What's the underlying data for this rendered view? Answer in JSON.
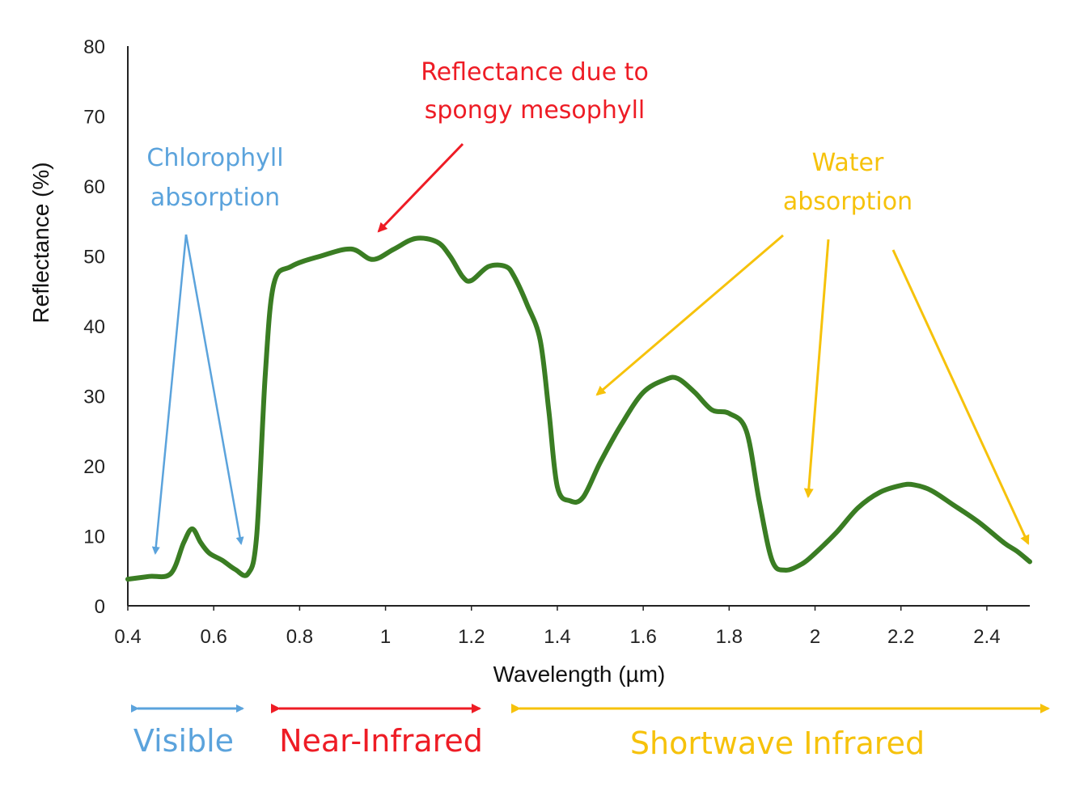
{
  "chart_data": {
    "type": "line",
    "xlabel": "Wavelength (µm)",
    "ylabel": "Reflectance (%)",
    "xlim": [
      0.4,
      2.5
    ],
    "ylim": [
      0,
      80
    ],
    "x_ticks": [
      "0.4",
      "0.6",
      "0.8",
      "1",
      "1.2",
      "1.4",
      "1.6",
      "1.8",
      "2",
      "2.2",
      "2.4"
    ],
    "y_ticks": [
      "0",
      "10",
      "20",
      "30",
      "40",
      "50",
      "60",
      "70",
      "80"
    ],
    "grid": false,
    "series": [
      {
        "color": "#3a7d23",
        "x": [
          0.4,
          0.45,
          0.5,
          0.53,
          0.55,
          0.57,
          0.59,
          0.62,
          0.65,
          0.68,
          0.7,
          0.72,
          0.74,
          0.78,
          0.85,
          0.92,
          0.97,
          1.02,
          1.07,
          1.12,
          1.15,
          1.18,
          1.2,
          1.24,
          1.28,
          1.3,
          1.33,
          1.36,
          1.38,
          1.4,
          1.43,
          1.46,
          1.5,
          1.55,
          1.6,
          1.65,
          1.68,
          1.72,
          1.76,
          1.8,
          1.84,
          1.87,
          1.9,
          1.93,
          1.97,
          2.0,
          2.05,
          2.1,
          2.15,
          2.2,
          2.23,
          2.27,
          2.32,
          2.38,
          2.44,
          2.47,
          2.5
        ],
        "y": [
          3.8,
          4.2,
          4.6,
          9.0,
          11.0,
          9.0,
          7.5,
          6.5,
          5.2,
          4.6,
          10,
          33,
          46,
          48.5,
          50,
          51,
          49.5,
          51,
          52.5,
          52,
          50,
          47,
          46.5,
          48.5,
          48.5,
          47,
          43,
          38,
          28,
          17,
          15,
          15.5,
          20.5,
          26,
          30.5,
          32.3,
          32.5,
          30.5,
          28,
          27.5,
          25,
          15,
          6.5,
          5.1,
          6.0,
          7.5,
          10.5,
          14,
          16.2,
          17.2,
          17.3,
          16.5,
          14.5,
          12,
          9,
          7.8,
          6.3
        ]
      }
    ],
    "annotations": [
      {
        "lines": [
          "Chlorophyll",
          "absorption"
        ],
        "color": "#5ba3dc"
      },
      {
        "lines": [
          "Reflectance due to",
          "spongy mesophyll"
        ],
        "color": "#ee1c25"
      },
      {
        "lines": [
          "Water",
          "absorption"
        ],
        "color": "#f6c20b"
      }
    ],
    "bands": [
      {
        "label": "Visible",
        "color": "#5ba3dc"
      },
      {
        "label": "Near-Infrared",
        "color": "#ee1c25"
      },
      {
        "label": "Shortwave Infrared",
        "color": "#f6c20b"
      }
    ]
  }
}
